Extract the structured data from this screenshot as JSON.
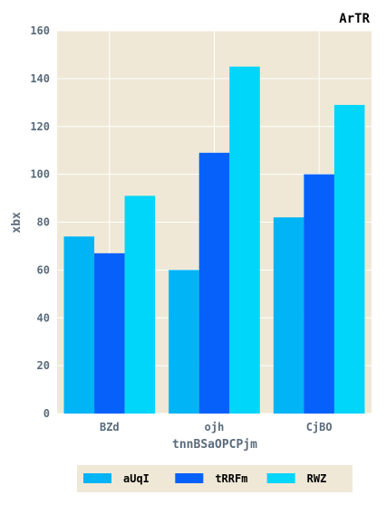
{
  "chart_data": {
    "type": "bar",
    "title": "ArTR",
    "xlabel": "tnnBSaOPCPjm",
    "ylabel": "xbx",
    "categories": [
      "BZd",
      "ojh",
      "CjBO"
    ],
    "series": [
      {
        "name": "aUqI",
        "values": [
          74,
          60,
          82
        ],
        "color": "#00b4f5"
      },
      {
        "name": "tRRFm",
        "values": [
          67,
          109,
          100
        ],
        "color": "#0561fa"
      },
      {
        "name": "RWZ",
        "values": [
          91,
          145,
          129
        ],
        "color": "#00d5fa"
      }
    ],
    "ylim": [
      0,
      160
    ],
    "yticks": [
      0,
      20,
      40,
      60,
      80,
      100,
      120,
      140,
      160
    ],
    "grid": true,
    "legend_position": "bottom",
    "colors": {
      "plot_background": "#efe8d6",
      "grid": "#ffffff",
      "tick_text": "#5a6b7b"
    }
  }
}
